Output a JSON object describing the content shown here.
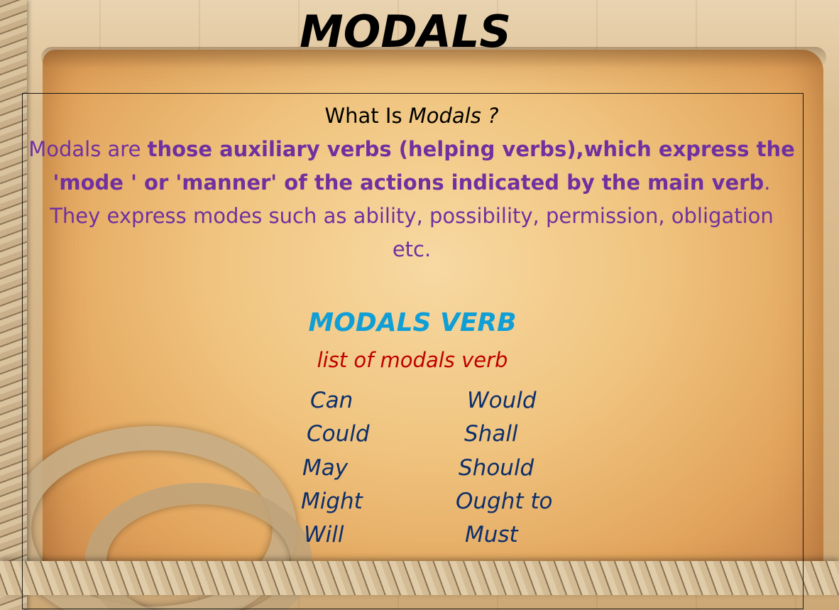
{
  "title": "MODALS",
  "intro": {
    "question_prefix": "What Is ",
    "question_word": "Modals ?",
    "line1_plain": "Modals are ",
    "line1_bold": "those auxiliary verbs (helping verbs),which express the 'mode ' or 'manner' of the actions indicated by the main verb",
    "line1_end": ".",
    "line2": "They express modes such as ability, possibility, permission, obligation etc."
  },
  "subheading": "MODALS VERB",
  "list_caption": "list of modals verb",
  "verbs_left": [
    "Can",
    "Could",
    "May",
    "Might",
    "Will"
  ],
  "verbs_right": [
    "Would",
    "Shall",
    "Should",
    "Ought to",
    "Must"
  ],
  "colors": {
    "intro_purple": "#7030a0",
    "subheading_blue": "#0f9ed5",
    "caption_red": "#c00000",
    "verbs_navy": "#0d2f6b"
  }
}
